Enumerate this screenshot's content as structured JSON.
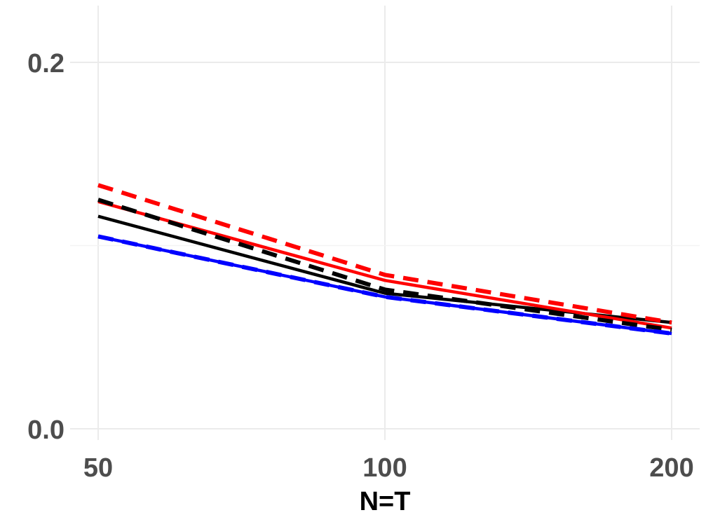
{
  "chart_data": {
    "type": "line",
    "title": "",
    "xlabel": "N=T",
    "ylabel": "",
    "x": [
      50,
      100,
      200
    ],
    "x_ticks": [
      50,
      100,
      200
    ],
    "x_tick_labels": [
      "50",
      "100",
      "200"
    ],
    "x_scale": "categorical-evenly-spaced",
    "y_ticks": [
      0.0,
      0.2
    ],
    "y_tick_labels": [
      "0.0",
      "0.2"
    ],
    "ylim": [
      0.0,
      0.2
    ],
    "grid": true,
    "legend": "none",
    "series": [
      {
        "values": [
          0.116,
          0.074,
          0.058
        ],
        "color": "#000000",
        "dash": "solid"
      },
      {
        "values": [
          0.125,
          0.076,
          0.054
        ],
        "color": "#000000",
        "dash": "dashed"
      },
      {
        "values": [
          0.105,
          0.072,
          0.052
        ],
        "color": "#0000ff",
        "dash": "solid"
      },
      {
        "values": [
          0.105,
          0.072,
          0.052
        ],
        "color": "#0000ff",
        "dash": "dashed"
      },
      {
        "values": [
          0.124,
          0.081,
          0.055
        ],
        "color": "#ff0000",
        "dash": "solid"
      },
      {
        "values": [
          0.133,
          0.084,
          0.058
        ],
        "color": "#ff0000",
        "dash": "dashed"
      }
    ]
  }
}
